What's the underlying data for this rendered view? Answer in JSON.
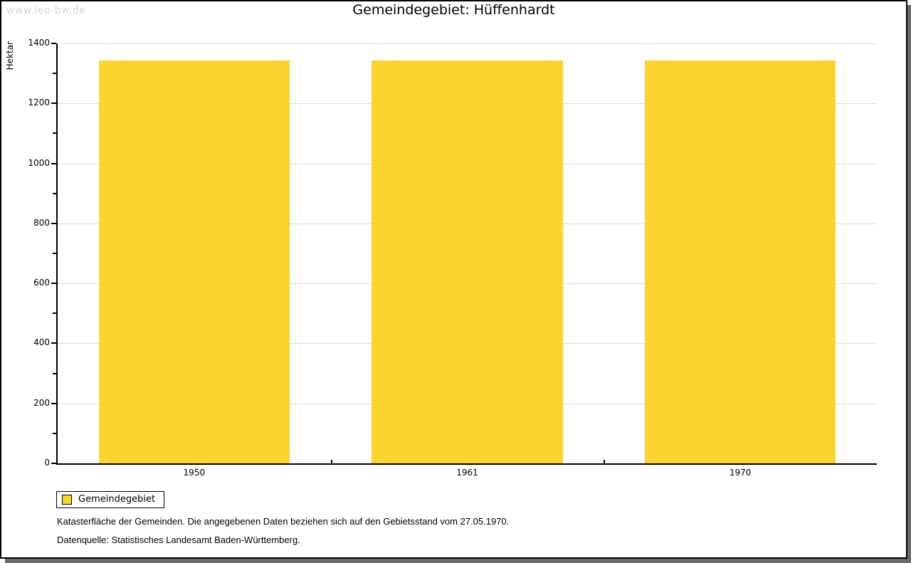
{
  "page": {
    "watermark": "www.leo-bw.de"
  },
  "header": {
    "title": "Gemeindegebiet: Hüffenhardt"
  },
  "chart_data": {
    "type": "bar",
    "title": "Gemeindegebiet: Hüffenhardt",
    "ylabel": "Hektar",
    "xlabel": "",
    "categories": [
      "1950",
      "1961",
      "1970"
    ],
    "series": [
      {
        "name": "Gemeindegebiet",
        "color": "#fcd42e",
        "values": [
          1343,
          1343,
          1343
        ]
      }
    ],
    "ylim": [
      0,
      1400
    ],
    "ytick_major_step": 200,
    "ytick_minor_step": 100,
    "grid": "horizontal gridlines at major ticks",
    "legend_position": "below plot, bottom-left",
    "bar_width_fraction": 0.7
  },
  "legend": {
    "items": [
      {
        "label": "Gemeindegebiet",
        "color": "#fcd42e"
      }
    ]
  },
  "footnotes": {
    "line1": "Katasterfläche der Gemeinden. Die angegebenen Daten beziehen sich auf den Gebietsstand vom 27.05.1970.",
    "line2": "Datenquelle: Statistisches Landesamt Baden-Württemberg."
  },
  "colors": {
    "bar": "#fcd42e",
    "gridline": "#dedede",
    "axis": "#000000",
    "watermark": "#d6d6d6",
    "frame_shadow": "#6a6a6a",
    "background": "#ffffff"
  }
}
